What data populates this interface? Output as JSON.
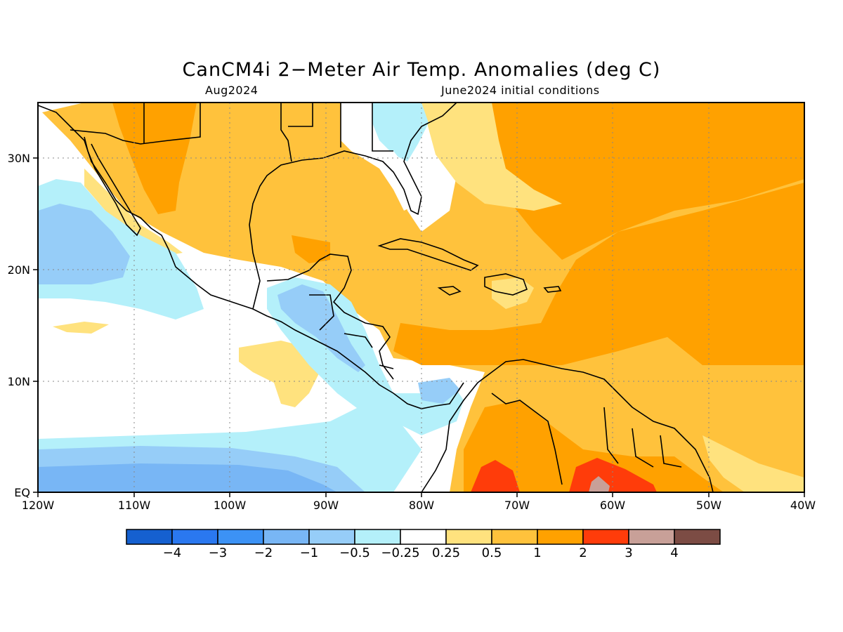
{
  "title": "CanCM4i 2−Meter Air Temp. Anomalies (deg C)",
  "subtitle_left": "Aug2024",
  "subtitle_right": "June2024 initial conditions",
  "map": {
    "lon_ticks": [
      "120W",
      "110W",
      "100W",
      "90W",
      "80W",
      "70W",
      "60W",
      "50W",
      "40W"
    ],
    "lat_ticks": [
      "EQ",
      "10N",
      "20N",
      "30N"
    ],
    "lon_range": [
      -120,
      -40
    ],
    "lat_range": [
      0,
      35
    ]
  },
  "colorbar": {
    "colors": [
      "#1560d0",
      "#2a78f0",
      "#3c92f5",
      "#78b6f5",
      "#96cdf8",
      "#b4f0fa",
      "#ffffff",
      "#ffe27e",
      "#ffc23c",
      "#ffa100",
      "#ff3c0a",
      "#c8a098",
      "#7c4c44"
    ],
    "labels": [
      "−4",
      "−3",
      "−2",
      "−1",
      "−0.5",
      "−0.25",
      "0.25",
      "0.5",
      "1",
      "2",
      "3",
      "4"
    ]
  }
}
